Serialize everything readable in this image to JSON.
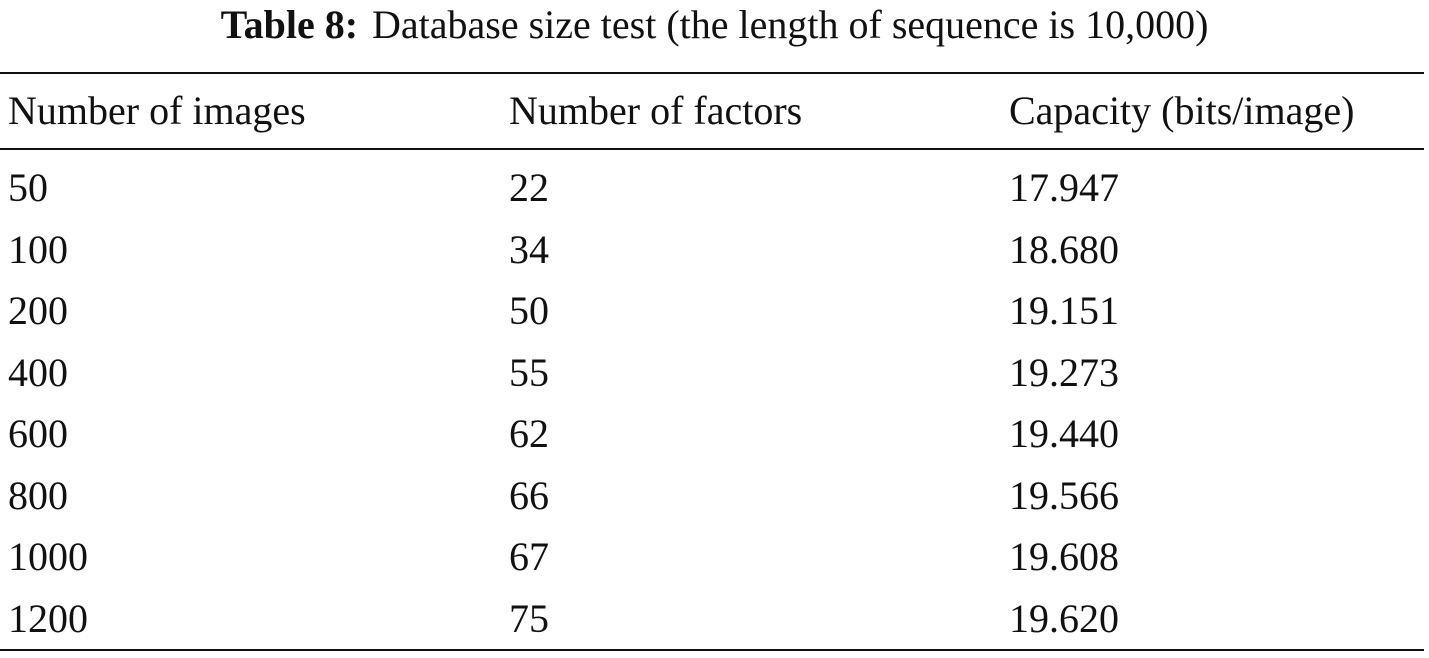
{
  "caption": {
    "label": "Table 8:",
    "text": "Database size test (the length of sequence is 10,000)"
  },
  "table": {
    "header": [
      "Number of images",
      "Number of factors",
      "Capacity (bits/image)"
    ],
    "rows": [
      [
        "50",
        "22",
        "17.947"
      ],
      [
        "100",
        "34",
        "18.680"
      ],
      [
        "200",
        "50",
        "19.151"
      ],
      [
        "400",
        "55",
        "19.273"
      ],
      [
        "600",
        "62",
        "19.440"
      ],
      [
        "800",
        "66",
        "19.566"
      ],
      [
        "1000",
        "67",
        "19.608"
      ],
      [
        "1200",
        "75",
        "19.620"
      ]
    ]
  }
}
